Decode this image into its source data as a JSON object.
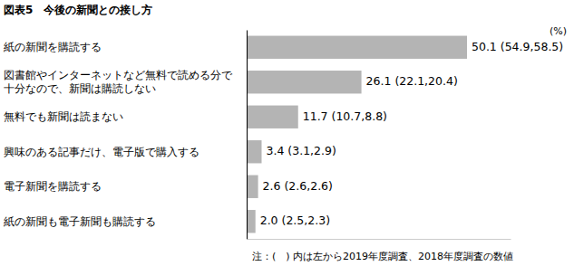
{
  "chart_data": {
    "type": "bar",
    "orientation": "horizontal",
    "title": "図表5　今後の新聞との接し方",
    "xlabel": "(%)",
    "categories": [
      "紙の新聞を購読する",
      "図書館やインターネットなど無料で読める分で\n十分なので、新聞は購読しない",
      "無料でも新聞は読まない",
      "興味のある記事だけ、電子版で購入する",
      "電子新聞を購読する",
      "紙の新聞も電子新聞も購読する"
    ],
    "values": [
      50.1,
      26.1,
      11.7,
      3.4,
      2.6,
      2.0
    ],
    "value_labels": [
      "50.1 (54.9,58.5)",
      "26.1 (22.1,20.4)",
      "11.7 (10.7,8.8)",
      "3.4 (3.1,2.9)",
      "2.6 (2.6,2.6)",
      "2.0 (2.5,2.3)"
    ],
    "color": "#b4b4b4",
    "xlim": [
      0,
      60
    ],
    "data_labels": true,
    "tick_labels": false,
    "grid": false,
    "annotations": [
      "注：(　) 内は左から2019年度調査、2018年度調査の数値"
    ]
  }
}
